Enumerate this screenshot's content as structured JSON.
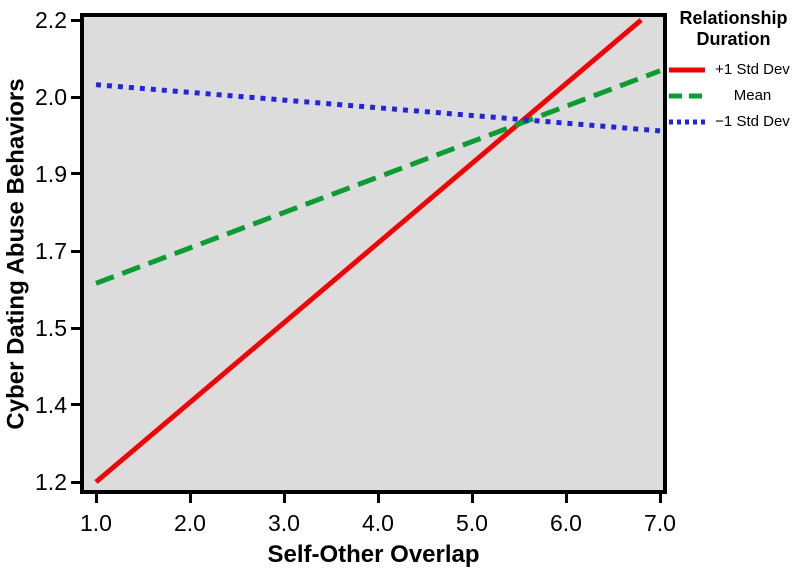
{
  "legend": {
    "title": "Relationship Duration",
    "position": "outside-top-right"
  },
  "chart_data": {
    "type": "line",
    "title": "",
    "xlabel": "Self-Other Overlap",
    "ylabel": "Cyber Dating Abuse Behaviors",
    "xlim": [
      1.0,
      7.0
    ],
    "ylim": [
      1.2,
      2.2
    ],
    "grid": false,
    "plot_background": "#dcdcdc",
    "frame_color": "#000000",
    "x_ticks": [
      {
        "value": 1.0,
        "label": "1.0"
      },
      {
        "value": 2.0,
        "label": "2.0"
      },
      {
        "value": 3.0,
        "label": "3.0"
      },
      {
        "value": 4.0,
        "label": "4.0"
      },
      {
        "value": 5.0,
        "label": "5.0"
      },
      {
        "value": 6.0,
        "label": "6.0"
      },
      {
        "value": 7.0,
        "label": "7.0"
      }
    ],
    "y_ticks": [
      {
        "value": 2.2,
        "label": "2.2"
      },
      {
        "value": 2.0333,
        "label": "2.0"
      },
      {
        "value": 1.8667,
        "label": "1.9"
      },
      {
        "value": 1.7,
        "label": "1.7"
      },
      {
        "value": 1.5333,
        "label": "1.5"
      },
      {
        "value": 1.3667,
        "label": "1.4"
      },
      {
        "value": 1.2,
        "label": "1.2"
      }
    ],
    "legend_title": "Relationship Duration",
    "series": [
      {
        "name": "+1 Std Dev",
        "style": "solid",
        "color": "#ee0606",
        "x": [
          1.0,
          6.8
        ],
        "y": [
          1.2,
          2.2
        ],
        "note": "line clipped at y-axis maximum 2.2 near x=6.8"
      },
      {
        "name": "Mean",
        "style": "dashed",
        "color": "#0d9c31",
        "x": [
          1.0,
          7.0
        ],
        "y": [
          1.63,
          2.09
        ]
      },
      {
        "name": "−1 Std Dev",
        "style": "dotted",
        "color": "#2424dd",
        "x": [
          1.0,
          7.0
        ],
        "y": [
          2.06,
          1.96
        ]
      }
    ]
  }
}
